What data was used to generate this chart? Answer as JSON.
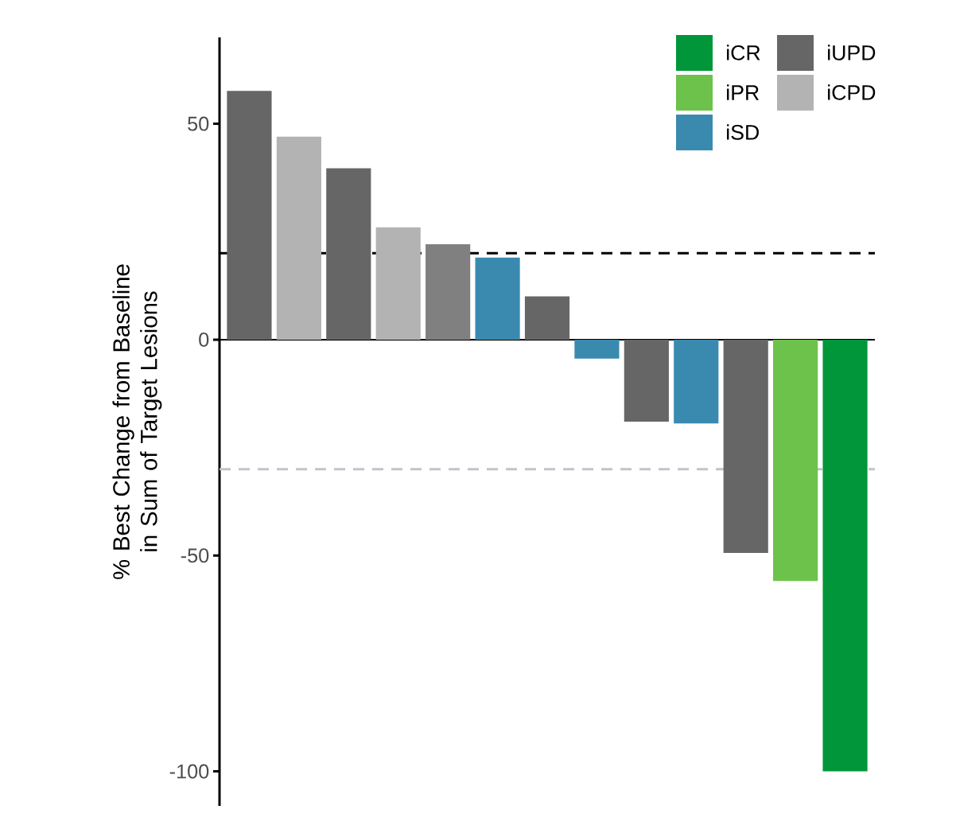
{
  "chart_data": {
    "type": "bar",
    "ylabel": "% Best Change from Baseline in Sum of Target Lesions",
    "categories": [
      null,
      null,
      null,
      null,
      null,
      null,
      null,
      null,
      null,
      null,
      null,
      null,
      null
    ],
    "series": [
      {
        "name": "iCR",
        "color": "#009639",
        "values": [
          null,
          null,
          null,
          null,
          null,
          null,
          null,
          null,
          null,
          null,
          null,
          null,
          -100
        ]
      },
      {
        "name": "iPR",
        "color": "#6cc24a",
        "values": [
          null,
          null,
          null,
          null,
          null,
          null,
          null,
          null,
          null,
          null,
          null,
          -55.9,
          null
        ]
      },
      {
        "name": "iSD",
        "color": "#3a8ab0",
        "values": [
          null,
          null,
          null,
          null,
          null,
          19.0,
          null,
          -4.4,
          null,
          -19.4,
          null,
          null,
          null
        ]
      },
      {
        "name": "iUPD",
        "color": "#666666",
        "values": [
          57.6,
          null,
          39.7,
          null,
          null,
          null,
          10.0,
          null,
          -19.0,
          null,
          -49.4,
          null,
          null
        ]
      },
      {
        "name": "iCPD",
        "color": "#b3b3b3",
        "values": [
          null,
          47.0,
          null,
          26.0,
          null,
          null,
          null,
          null,
          null,
          null,
          null,
          null,
          null
        ]
      },
      {
        "color": "#808080",
        "values": [
          null,
          null,
          null,
          null,
          22.1,
          null,
          null,
          null,
          null,
          null,
          null,
          null,
          null
        ]
      }
    ],
    "ylim": [
      -108,
      70
    ],
    "yticks": [
      -100,
      -50,
      0,
      50
    ],
    "ref_lines": [
      {
        "axis": "y",
        "value": 20,
        "color": "#000000",
        "line_style": "dashed"
      },
      {
        "axis": "y",
        "value": -30,
        "color": "#c0c4cc",
        "line_style": "dashed"
      }
    ],
    "legend": "top right"
  }
}
